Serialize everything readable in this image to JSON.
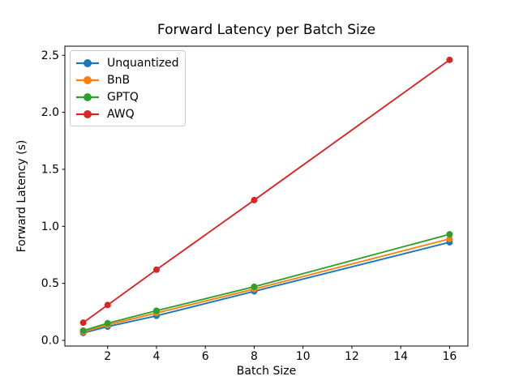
{
  "figure": {
    "background": "#ffffff",
    "axis_color": "#000000"
  },
  "chart_data": {
    "type": "line",
    "title": "Forward Latency per Batch Size",
    "xlabel": "Batch Size",
    "ylabel": "Forward Latency (s)",
    "x": [
      1,
      2,
      4,
      8,
      16
    ],
    "series": [
      {
        "name": "Unquantized",
        "color": "#1f77b4",
        "values": [
          0.065,
          0.12,
          0.215,
          0.43,
          0.86
        ]
      },
      {
        "name": "BnB",
        "color": "#ff7f0e",
        "values": [
          0.075,
          0.135,
          0.24,
          0.45,
          0.89
        ]
      },
      {
        "name": "GPTQ",
        "color": "#2ca02c",
        "values": [
          0.085,
          0.15,
          0.26,
          0.47,
          0.93
        ]
      },
      {
        "name": "AWQ",
        "color": "#d62728",
        "values": [
          0.155,
          0.31,
          0.62,
          1.23,
          2.46
        ]
      }
    ],
    "xlim": [
      0.25,
      16.75
    ],
    "ylim": [
      -0.05,
      2.58
    ],
    "xticks": [
      2,
      4,
      6,
      8,
      10,
      12,
      14,
      16
    ],
    "yticks": [
      0.0,
      0.5,
      1.0,
      1.5,
      2.0,
      2.5
    ],
    "grid": false,
    "legend_position": "upper-left",
    "marker": "circle"
  }
}
